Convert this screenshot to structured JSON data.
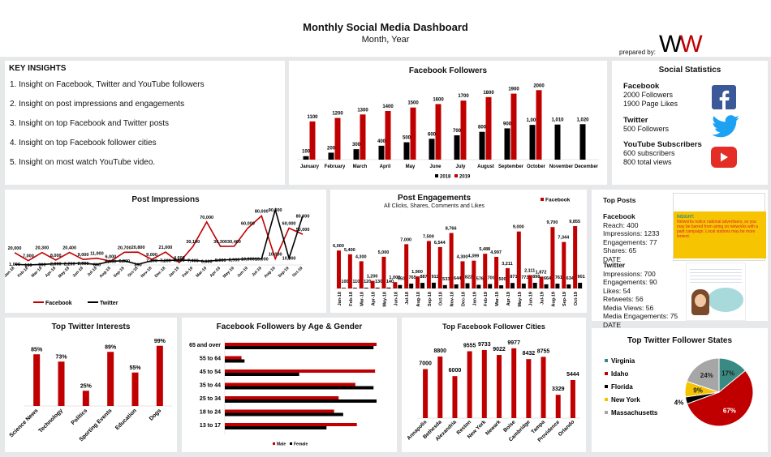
{
  "header": {
    "title": "Monthly Social Media Dashboard",
    "subtitle": "Month, Year",
    "prepared_by": "prepared by:",
    "logo": "WW"
  },
  "key_insights": {
    "title": "KEY INSIGHTS",
    "items": [
      "1. Insight on Facebook, Twitter and YouTube followers",
      "2. Insight on post impressions and engagements",
      "3. Insight on top Facebook and Twitter posts",
      "4. Insight on top Facebook follower cities",
      "5. Insight on most watch YouTube video."
    ]
  },
  "social_stats": {
    "title": "Social Statistics",
    "facebook": {
      "label": "Facebook",
      "l1": "2000 Followers",
      "l2": "1900 Page Likes"
    },
    "twitter": {
      "label": "Twitter",
      "l1": "500 Followers"
    },
    "youtube": {
      "label": "YouTube Subscribers",
      "l1": "600 subscribers",
      "l2": "800 total views"
    }
  },
  "top_posts": {
    "title": "Top Posts",
    "facebook": {
      "label": "Facebook",
      "lines": [
        "Reach: 400",
        "Impressions: 1233",
        "Engagements: 77",
        "Shares: 65",
        "DATE"
      ]
    },
    "twitter": {
      "label": "Twitter",
      "lines": [
        "Impressions: 700",
        "Engagements: 90",
        "Likes: 54",
        "Retweets: 56",
        "Media Views: 56",
        "Media Engagements: 75",
        "DATE"
      ]
    },
    "fb_post_image": {
      "heading": "INSIGHT:",
      "text": "Networks notice national advertisers, so you may be barred from airing on networks with a paid campaign. Local stations may be more lenient."
    }
  },
  "colors": {
    "red": "#c00000",
    "black": "#000000",
    "teal": "#3a8a84",
    "yellow": "#f5c400",
    "gray": "#a6a6a6"
  },
  "chart_data": [
    {
      "id": "facebook_followers",
      "type": "bar",
      "title": "Facebook Followers",
      "categories": [
        "January",
        "February",
        "March",
        "April",
        "May",
        "June",
        "July",
        "August",
        "September",
        "October",
        "November",
        "December"
      ],
      "series": [
        {
          "name": "2018",
          "color": "#000000",
          "values": [
            100,
            200,
            300,
            400,
            500,
            600,
            700,
            800,
            900,
            1000,
            1010,
            1020
          ],
          "labels": [
            "100",
            "200",
            "300",
            "400",
            "500",
            "600",
            "700",
            "800",
            "900",
            "1,000",
            "1,010",
            "1,020"
          ]
        },
        {
          "name": "2019",
          "color": "#c00000",
          "values": [
            1100,
            1200,
            1300,
            1400,
            1500,
            1600,
            1700,
            1800,
            1900,
            2000,
            null,
            null
          ],
          "labels": [
            "1100",
            "1200",
            "1300",
            "1400",
            "1500",
            "1600",
            "1700",
            "1800",
            "1900",
            "2000",
            "",
            ""
          ]
        }
      ],
      "legend_position": "bottom"
    },
    {
      "id": "post_impressions",
      "type": "line",
      "title": "Post Impressions",
      "categories": [
        "Jan-18",
        "Feb-18",
        "Mar-18",
        "Apr-18",
        "May-18",
        "Jun-18",
        "Jul-18",
        "Aug-18",
        "Sep-18",
        "Oct-18",
        "Nov-18",
        "Dec-18",
        "Jan-19",
        "Feb-19",
        "Mar-19",
        "Apr-19",
        "May-19",
        "Jun-19",
        "Jul-19",
        "Aug-19",
        "Sep-19",
        "Oct-19"
      ],
      "series": [
        {
          "name": "Facebook",
          "color": "#c00000",
          "values": [
            20000,
            7000,
            20300,
            8000,
            20400,
            9000,
            11000,
            6000,
            20700,
            20800,
            9000,
            21000,
            4000,
            30100,
            70000,
            30300,
            30400,
            60000,
            80000,
            10000,
            60000,
            50000
          ]
        },
        {
          "name": "Twitter",
          "color": "#000000",
          "values": [
            1000,
            100,
            900,
            2000,
            2200,
            2900,
            800,
            6000,
            6800,
            890,
            7100,
            7200,
            8000,
            7400,
            6000,
            8000,
            8900,
            10000,
            10000,
            90000,
            10900,
            80000
          ]
        }
      ],
      "legend_position": "bottom"
    },
    {
      "id": "post_engagements",
      "type": "bar",
      "title": "Post Engagements",
      "subtitle": "All Clicks, Shares, Comments and Likes",
      "categories": [
        "Jan-18",
        "Feb-18",
        "Mar-18",
        "Apr-18",
        "May-18",
        "Jun-18",
        "Jul-18",
        "Aug-18",
        "Sep-18",
        "Oct-18",
        "Nov-18",
        "Dec-18",
        "Jan-19",
        "Feb-19",
        "Mar-19",
        "Apr-19",
        "May-19",
        "Jun-19",
        "Jul-19",
        "Aug-19",
        "Sep-19",
        "Oct-19"
      ],
      "series": [
        {
          "name": "Facebook",
          "color": "#c00000",
          "values": [
            6000,
            5400,
            4300,
            1200,
            5000,
            1000,
            7000,
            1900,
            7500,
            6544,
            8766,
            4300,
            4399,
            5488,
            4997,
            3211,
            9000,
            2111,
            1872,
            9700,
            7344,
            9855
          ]
        },
        {
          "name": "Twitter",
          "color": "#000000",
          "values": [
            100,
            110,
            120,
            130,
            140,
            550,
            765,
            887,
            911,
            533,
            644,
            822,
            576,
            700,
            500,
            871,
            773,
            898,
            664,
            761,
            634,
            901
          ]
        }
      ],
      "legend_position": "top-right"
    },
    {
      "id": "twitter_interests",
      "type": "bar",
      "title": "Top Twitter Interests",
      "categories": [
        "Science News",
        "Technology",
        "Politics",
        "Sporting Events",
        "Education",
        "Dogs"
      ],
      "values": [
        85,
        73,
        25,
        89,
        55,
        99
      ],
      "labels": [
        "85%",
        "73%",
        "25%",
        "89%",
        "55%",
        "99%"
      ]
    },
    {
      "id": "fb_age_gender",
      "type": "bar",
      "orientation": "horizontal",
      "title": "Facebook Followers by Age & Gender",
      "categories": [
        "65 and over",
        "55 to 64",
        "45 to 54",
        "35 to 44",
        "25 to 34",
        "18 to 24",
        "13 to 17"
      ],
      "series": [
        {
          "name": "Male",
          "color": "#c00000",
          "values": [
            100,
            11,
            99,
            86,
            75,
            72,
            87
          ]
        },
        {
          "name": "Female",
          "color": "#000000",
          "values": [
            98,
            13,
            49,
            98,
            100,
            78,
            67
          ]
        }
      ],
      "legend_position": "bottom"
    },
    {
      "id": "fb_cities",
      "type": "bar",
      "title": "Top Facebook Follower Cities",
      "categories": [
        "Annapolis",
        "Bethesda",
        "Alexandria",
        "Reston",
        "New York",
        "Newark",
        "Boise",
        "Cambridge",
        "Tampa",
        "Providence",
        "Orlando"
      ],
      "values": [
        7000,
        8800,
        6000,
        9555,
        9733,
        9022,
        9977,
        8432,
        8755,
        3329,
        5444
      ]
    },
    {
      "id": "twitter_states",
      "type": "pie",
      "title": "Top Twitter Follower States",
      "categories": [
        "Virginia",
        "Idaho",
        "Florida",
        "New York",
        "Massachusetts"
      ],
      "values": [
        17,
        67,
        4,
        9,
        24
      ],
      "labels": [
        "17%",
        "67%",
        "4%",
        "9%",
        "24%"
      ],
      "colors": [
        "#3a8a84",
        "#c00000",
        "#000000",
        "#f5c400",
        "#a6a6a6"
      ],
      "legend_position": "left"
    }
  ]
}
